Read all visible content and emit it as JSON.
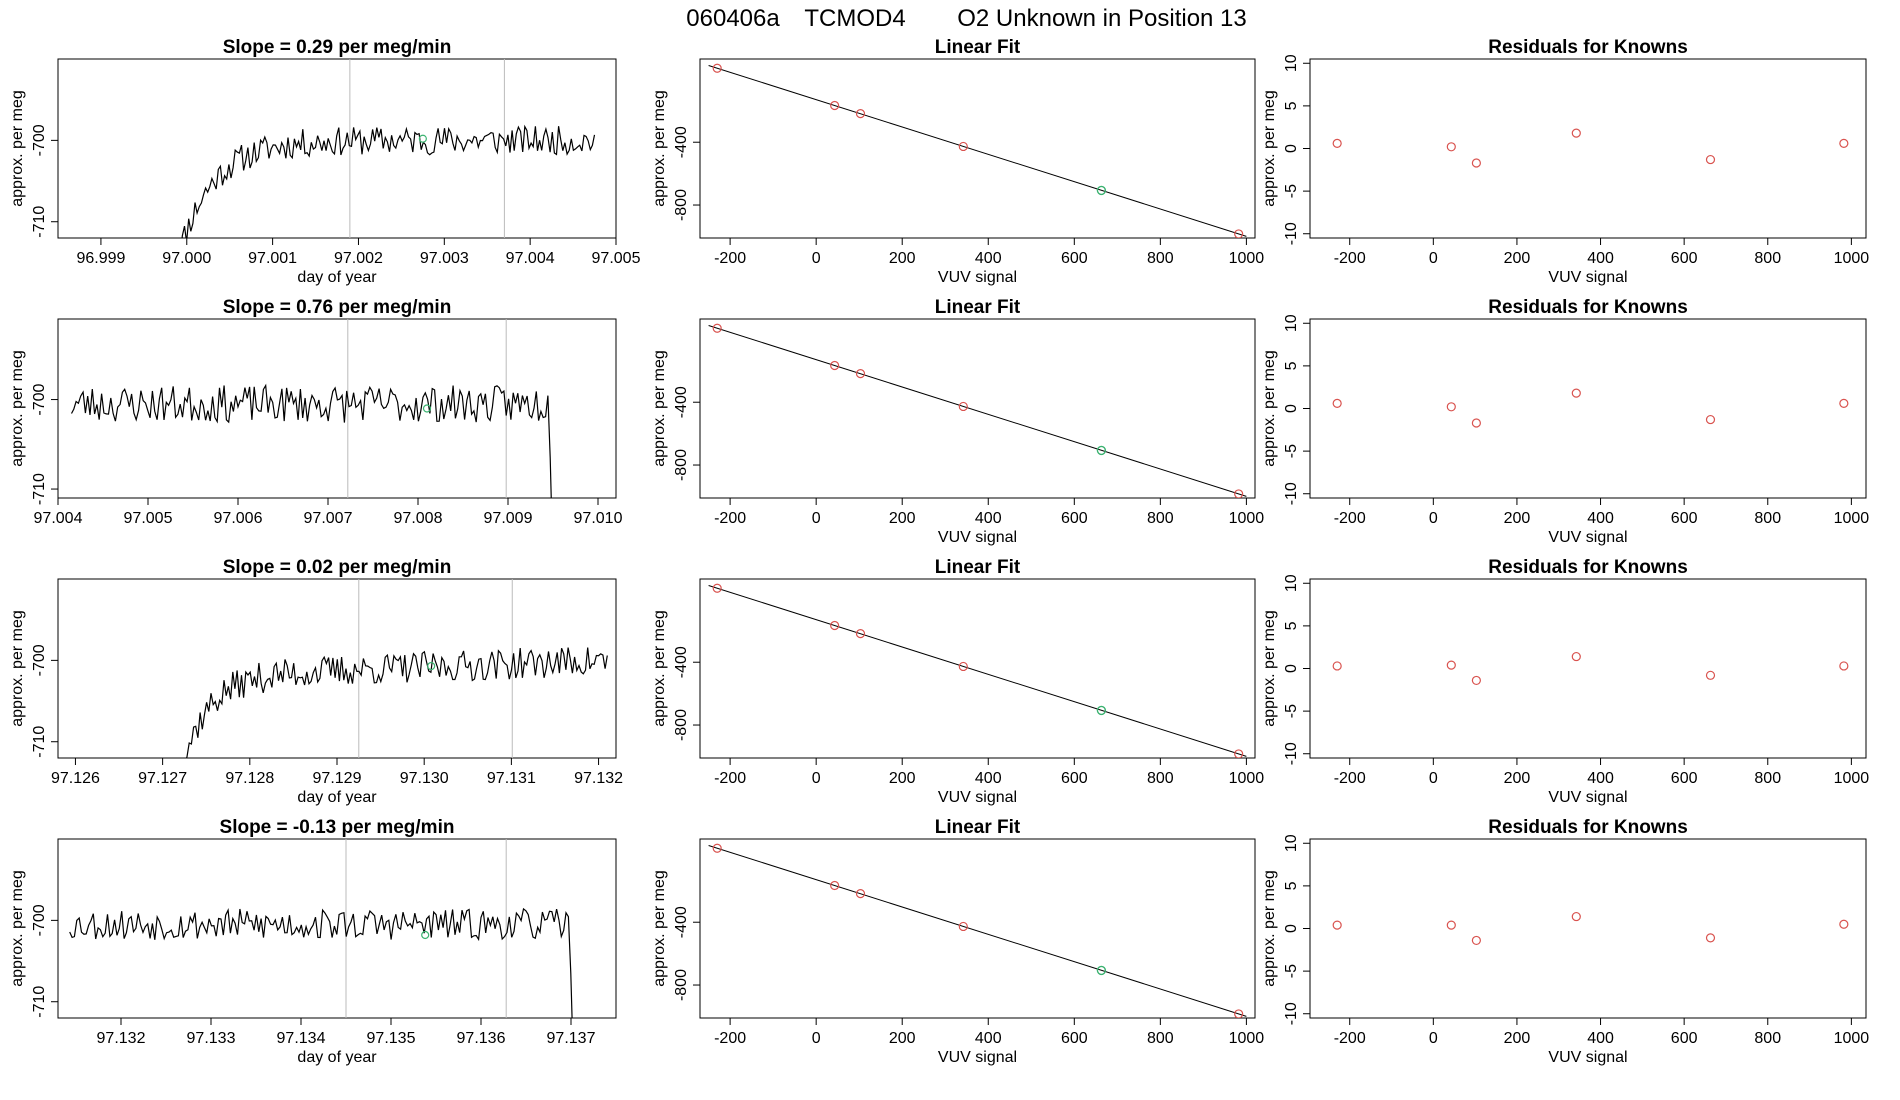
{
  "page": {
    "title_parts": [
      "060406a",
      "TCMOD4",
      "O2 Unknown in Position  13"
    ]
  },
  "colors": {
    "line": "#000000",
    "known_point": "#d9534f",
    "unknown_point": "#3cb371",
    "marker_line": "#bbbbbb",
    "frame": "#000000"
  },
  "fit_x": [
    -230,
    43,
    103,
    342,
    663,
    982
  ],
  "fit_line": {
    "x": [
      -250,
      1000
    ]
  },
  "chart_data": [
    {
      "type": "line",
      "title": "Slope =  0.29  per meg/min",
      "xlabel": "day of year",
      "ylabel": "approx. per meg",
      "xlim": [
        96.9985,
        97.005
      ],
      "ylim": [
        -712,
        -690
      ],
      "xticks": [
        "96.999",
        "97.000",
        "97.001",
        "97.002",
        "97.003",
        "97.004",
        "97.005"
      ],
      "yticks": [
        "-700",
        "-710"
      ],
      "markers_x": [
        97.0019,
        97.0037
      ],
      "series": [
        {
          "start": 96.99985,
          "end": 97.00475,
          "level": -700,
          "rise_from": -716,
          "rise_tau": 0.0004,
          "drift": 0.0,
          "amp": 1.1,
          "seed": 11,
          "n": 200,
          "tail_drop": false
        }
      ],
      "highlight": {
        "x": 97.00275,
        "y": -699.8
      }
    },
    {
      "type": "line",
      "title": "Linear Fit",
      "xlabel": "VUV signal",
      "ylabel": "approx. per meg",
      "xlim": [
        -270,
        1020
      ],
      "ylim": [
        -1010,
        130
      ],
      "xticks": [
        "-200",
        "0",
        "200",
        "400",
        "600",
        "800",
        "1000"
      ],
      "yticks": [
        "-400",
        "-800"
      ],
      "known_points": {
        "x": [
          -230,
          43,
          103,
          342,
          982
        ],
        "y": [
          71,
          -166,
          -218,
          -427,
          -984
        ]
      },
      "unknown_point": {
        "x": 663,
        "y": -707
      }
    },
    {
      "type": "scatter",
      "title": "Residuals for Knowns",
      "xlabel": "VUV signal",
      "ylabel": "approx. per meg",
      "xlim": [
        -295,
        1035
      ],
      "ylim": [
        -10.5,
        10.5
      ],
      "xticks": [
        "-200",
        "0",
        "200",
        "400",
        "600",
        "800",
        "1000"
      ],
      "yticks": [
        "10",
        "5",
        "0",
        "-5",
        "-10"
      ],
      "points": {
        "x": [
          -230,
          43,
          103,
          342,
          663,
          982
        ],
        "y": [
          0.6,
          0.2,
          -1.7,
          1.8,
          -1.3,
          0.6
        ]
      }
    },
    {
      "type": "line",
      "title": "Slope =  0.76  per meg/min",
      "xlabel": "",
      "ylabel": "approx. per meg",
      "xlim": [
        97.004,
        97.0102
      ],
      "ylim": [
        -711,
        -691
      ],
      "xticks": [
        "97.004",
        "97.005",
        "97.006",
        "97.007",
        "97.008",
        "97.009",
        "97.010"
      ],
      "yticks": [
        "-700",
        "-710"
      ],
      "markers_x": [
        97.00722,
        97.00898
      ],
      "series": [
        {
          "start": 97.00415,
          "end": 97.00952,
          "level": -700.5,
          "rise_from": -700.5,
          "rise_tau": 0.0001,
          "drift": 0.0,
          "amp": 1.3,
          "seed": 23,
          "n": 210,
          "tail_drop": true
        }
      ],
      "highlight": {
        "x": 97.0081,
        "y": -701
      }
    },
    {
      "type": "line",
      "title": "Linear Fit",
      "xlabel": "VUV signal",
      "ylabel": "approx. per meg",
      "xlim": [
        -270,
        1020
      ],
      "ylim": [
        -1010,
        130
      ],
      "xticks": [
        "-200",
        "0",
        "200",
        "400",
        "600",
        "800",
        "1000"
      ],
      "yticks": [
        "-400",
        "-800"
      ],
      "known_points": {
        "x": [
          -230,
          43,
          103,
          342,
          982
        ],
        "y": [
          71,
          -166,
          -218,
          -427,
          -984
        ]
      },
      "unknown_point": {
        "x": 663,
        "y": -707
      }
    },
    {
      "type": "scatter",
      "title": "Residuals for Knowns",
      "xlabel": "VUV signal",
      "ylabel": "approx. per meg",
      "xlim": [
        -295,
        1035
      ],
      "ylim": [
        -10.5,
        10.5
      ],
      "xticks": [
        "-200",
        "0",
        "200",
        "400",
        "600",
        "800",
        "1000"
      ],
      "yticks": [
        "10",
        "5",
        "0",
        "-5",
        "-10"
      ],
      "points": {
        "x": [
          -230,
          43,
          103,
          342,
          663,
          982
        ],
        "y": [
          0.6,
          0.2,
          -1.7,
          1.8,
          -1.3,
          0.6
        ]
      }
    },
    {
      "type": "line",
      "title": "Slope =  0.02  per meg/min",
      "xlabel": "day of year",
      "ylabel": "approx. per meg",
      "xlim": [
        97.1258,
        97.1322
      ],
      "ylim": [
        -712,
        -690
      ],
      "xticks": [
        "97.126",
        "97.127",
        "97.128",
        "97.129",
        "97.130",
        "97.131",
        "97.132"
      ],
      "yticks": [
        "-700",
        "-710"
      ],
      "markers_x": [
        97.12925,
        97.13101
      ],
      "series": [
        {
          "start": 97.12713,
          "end": 97.1321,
          "level": -701,
          "rise_from": -716,
          "rise_tau": 0.0003,
          "drift": 2.0,
          "amp": 1.2,
          "seed": 37,
          "n": 200,
          "tail_drop": false
        }
      ],
      "highlight": {
        "x": 97.13008,
        "y": -700.7
      }
    },
    {
      "type": "line",
      "title": "Linear Fit",
      "xlabel": "VUV signal",
      "ylabel": "approx. per meg",
      "xlim": [
        -270,
        1020
      ],
      "ylim": [
        -1010,
        130
      ],
      "xticks": [
        "-200",
        "0",
        "200",
        "400",
        "600",
        "800",
        "1000"
      ],
      "yticks": [
        "-400",
        "-800"
      ],
      "known_points": {
        "x": [
          -230,
          43,
          103,
          342,
          982
        ],
        "y": [
          71,
          -166,
          -218,
          -427,
          -984
        ]
      },
      "unknown_point": {
        "x": 663,
        "y": -707
      }
    },
    {
      "type": "scatter",
      "title": "Residuals for Knowns",
      "xlabel": "VUV signal",
      "ylabel": "approx. per meg",
      "xlim": [
        -295,
        1035
      ],
      "ylim": [
        -10.5,
        10.5
      ],
      "xticks": [
        "-200",
        "0",
        "200",
        "400",
        "600",
        "800",
        "1000"
      ],
      "yticks": [
        "10",
        "5",
        "0",
        "-5",
        "-10"
      ],
      "points": {
        "x": [
          -230,
          43,
          103,
          342,
          663,
          982
        ],
        "y": [
          0.3,
          0.4,
          -1.4,
          1.4,
          -0.8,
          0.3
        ]
      }
    },
    {
      "type": "line",
      "title": "Slope =  -0.13  per meg/min",
      "xlabel": "day of year",
      "ylabel": "approx. per meg",
      "xlim": [
        97.1313,
        97.1375
      ],
      "ylim": [
        -712,
        -690
      ],
      "xticks": [
        "97.132",
        "97.133",
        "97.134",
        "97.135",
        "97.136",
        "97.137"
      ],
      "yticks": [
        "-700",
        "-710"
      ],
      "markers_x": [
        97.1345,
        97.13628
      ],
      "series": [
        {
          "start": 97.13143,
          "end": 97.13705,
          "level": -700.5,
          "rise_from": -700.5,
          "rise_tau": 0.0001,
          "drift": 0.0,
          "amp": 1.2,
          "seed": 53,
          "n": 215,
          "tail_drop": true
        }
      ],
      "highlight": {
        "x": 97.13538,
        "y": -701.8
      }
    },
    {
      "type": "line",
      "title": "Linear Fit",
      "xlabel": "VUV signal",
      "ylabel": "approx. per meg",
      "xlim": [
        -270,
        1020
      ],
      "ylim": [
        -1010,
        130
      ],
      "xticks": [
        "-200",
        "0",
        "200",
        "400",
        "600",
        "800",
        "1000"
      ],
      "yticks": [
        "-400",
        "-800"
      ],
      "known_points": {
        "x": [
          -230,
          43,
          103,
          342,
          982
        ],
        "y": [
          71,
          -166,
          -218,
          -427,
          -984
        ]
      },
      "unknown_point": {
        "x": 663,
        "y": -707
      }
    },
    {
      "type": "scatter",
      "title": "Residuals for Knowns",
      "xlabel": "VUV signal",
      "ylabel": "approx. per meg",
      "xlim": [
        -295,
        1035
      ],
      "ylim": [
        -10.5,
        10.5
      ],
      "xticks": [
        "-200",
        "0",
        "200",
        "400",
        "600",
        "800",
        "1000"
      ],
      "yticks": [
        "10",
        "5",
        "0",
        "-5",
        "-10"
      ],
      "points": {
        "x": [
          -230,
          43,
          103,
          342,
          663,
          982
        ],
        "y": [
          0.4,
          0.4,
          -1.4,
          1.4,
          -1.1,
          0.5
        ]
      }
    }
  ]
}
